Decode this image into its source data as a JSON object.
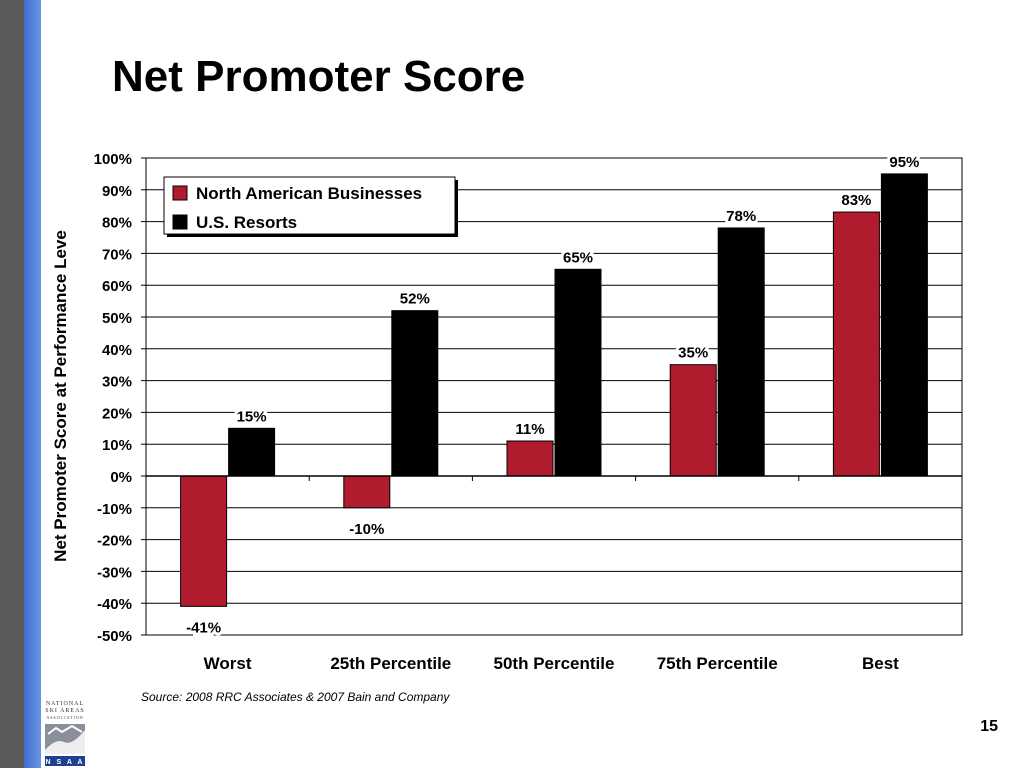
{
  "slide": {
    "title": "Net Promoter Score",
    "source": "Source:  2008 RRC Associates & 2007 Bain and Company",
    "page_number": "15",
    "logo_lines": [
      "NATIONAL",
      "SKI AREAS",
      "ASSOCIATION",
      "N S A A"
    ]
  },
  "colors": {
    "north_american": "#b01c2e",
    "us_resorts": "#000000",
    "sidebar_gray": "#5a5a5a",
    "sidebar_blue": "#4a7bd8"
  },
  "chart_data": {
    "type": "bar",
    "title": "",
    "xlabel": "",
    "ylabel": "Net Promoter Score at Performance Leve",
    "ylim": [
      -50,
      100
    ],
    "yticks": [
      100,
      90,
      80,
      70,
      60,
      50,
      40,
      30,
      20,
      10,
      0,
      -10,
      -20,
      -30,
      -40,
      -50
    ],
    "ytick_labels": [
      "100%",
      "90%",
      "80%",
      "70%",
      "60%",
      "50%",
      "40%",
      "30%",
      "20%",
      "10%",
      "0%",
      "-10%",
      "-20%",
      "-30%",
      "-40%",
      "-50%"
    ],
    "grid": true,
    "legend_position": "top-left",
    "categories": [
      "Worst",
      "25th Percentile",
      "50th Percentile",
      "75th Percentile",
      "Best"
    ],
    "series": [
      {
        "name": "North American Businesses",
        "values": [
          -41,
          -10,
          11,
          35,
          83
        ],
        "labels": [
          "-41%",
          "-10%",
          "11%",
          "35%",
          "83%"
        ],
        "color": "#b01c2e"
      },
      {
        "name": "U.S. Resorts",
        "values": [
          15,
          52,
          65,
          78,
          95
        ],
        "labels": [
          "15%",
          "52%",
          "65%",
          "78%",
          "95%"
        ],
        "color": "#000000"
      }
    ]
  }
}
